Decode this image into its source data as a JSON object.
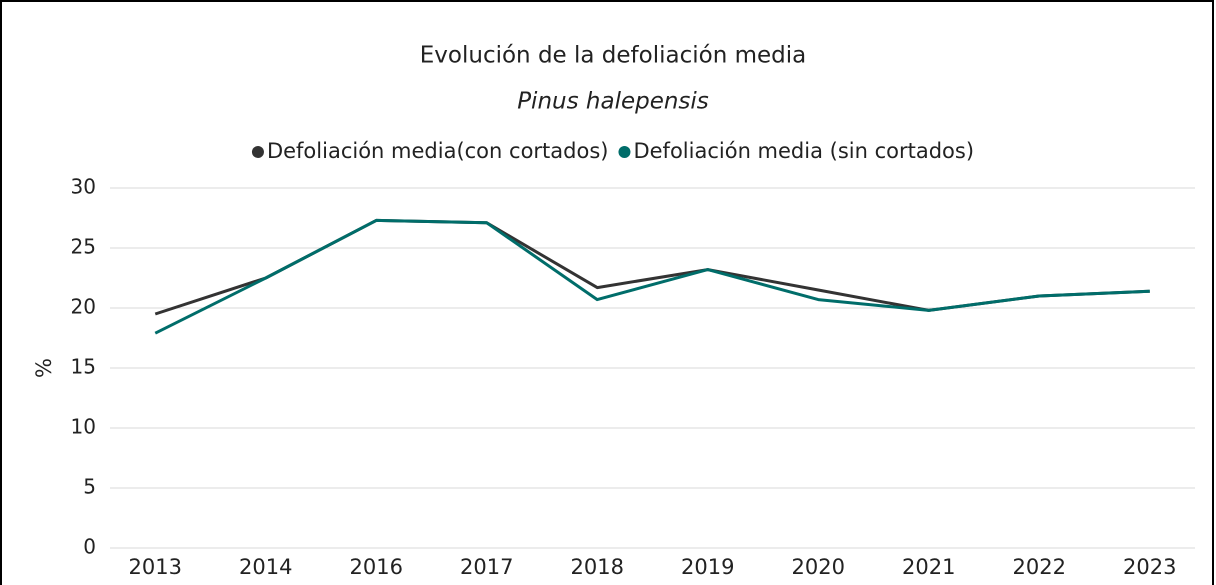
{
  "chart_data": {
    "type": "line",
    "title": "Evolución de la defoliación media",
    "subtitle": "Pinus halepensis",
    "ylabel": "%",
    "categories": [
      "2013",
      "2014",
      "2016",
      "2017",
      "2018",
      "2019",
      "2020",
      "2021",
      "2022",
      "2023"
    ],
    "series": [
      {
        "name": "Defoliación media(con cortados)",
        "color": "#333333",
        "values": [
          19.5,
          22.5,
          27.3,
          27.1,
          21.7,
          23.2,
          21.5,
          19.8,
          21.0,
          21.4
        ]
      },
      {
        "name": "Defoliación media (sin cortados)",
        "color": "#006d6a",
        "values": [
          17.9,
          22.5,
          27.3,
          27.1,
          20.7,
          23.2,
          20.7,
          19.8,
          21.0,
          21.4
        ]
      }
    ],
    "ylim": [
      0,
      30
    ],
    "yticks": [
      0,
      5,
      10,
      15,
      20,
      25,
      30
    ],
    "grid": true,
    "legend": "top"
  }
}
